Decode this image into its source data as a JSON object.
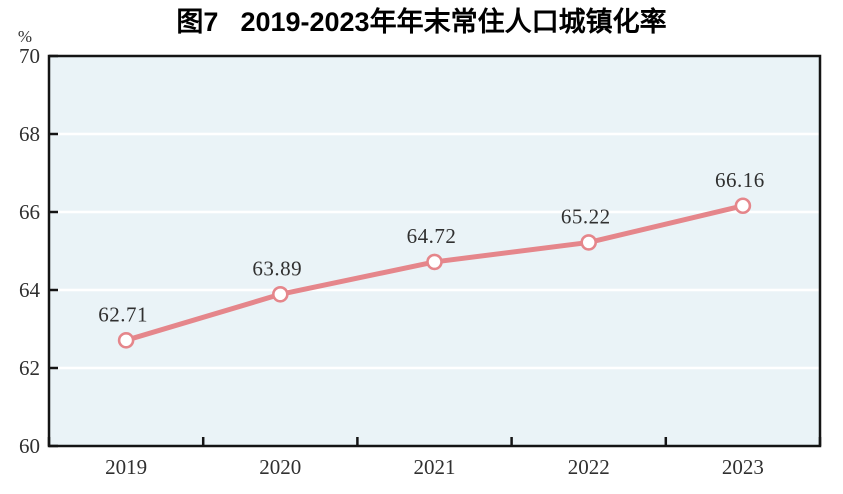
{
  "figure": {
    "label": "图7",
    "title_text": "2019-2023年年末常住人口城镇化率"
  },
  "chart_data": {
    "type": "line",
    "title": "图7 2019-2023年年末常住人口城镇化率",
    "categories": [
      "2019",
      "2020",
      "2021",
      "2022",
      "2023"
    ],
    "values": [
      62.71,
      63.89,
      64.72,
      65.22,
      66.16
    ],
    "point_labels": [
      "62.71",
      "63.89",
      "64.72",
      "65.22",
      "66.16"
    ],
    "xlabel": "",
    "ylabel": "%",
    "ylim": [
      60,
      70
    ],
    "ytick_step": 2,
    "yticks": [
      60,
      62,
      64,
      66,
      68,
      70
    ],
    "grid": "horizontal",
    "legend": "none",
    "marker": "open-circle",
    "colors": {
      "line": "#E5868B",
      "marker_fill": "#FFFFFF",
      "plot_bg": "#EAF3F7",
      "grid": "#FFFFFF",
      "axis": "#141414",
      "text": "#303030",
      "title": "#000000"
    }
  }
}
